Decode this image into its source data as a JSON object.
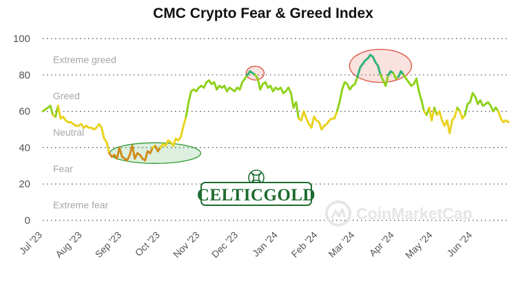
{
  "chart_data": {
    "type": "line",
    "title": "CMC Crypto Fear & Greed Index",
    "xlabel": "",
    "ylabel": "",
    "ylim": [
      0,
      100
    ],
    "yticks": [
      0,
      20,
      40,
      60,
      80,
      100
    ],
    "xlim": [
      "2023-07-01",
      "2024-06-30"
    ],
    "xticks": [
      {
        "date": "2023-07-01",
        "label": "Jul '23"
      },
      {
        "date": "2023-08-01",
        "label": "Aug '23"
      },
      {
        "date": "2023-09-01",
        "label": "Sep '23"
      },
      {
        "date": "2023-10-01",
        "label": "Oct '23"
      },
      {
        "date": "2023-11-01",
        "label": "Nov '23"
      },
      {
        "date": "2023-12-01",
        "label": "Dec '23"
      },
      {
        "date": "2024-01-01",
        "label": "Jan '24"
      },
      {
        "date": "2024-02-01",
        "label": "Feb '24"
      },
      {
        "date": "2024-03-01",
        "label": "Mar '24"
      },
      {
        "date": "2024-04-01",
        "label": "Apr '24"
      },
      {
        "date": "2024-05-01",
        "label": "May '24"
      },
      {
        "date": "2024-06-01",
        "label": "Jun '24"
      }
    ],
    "grid": true,
    "zones": [
      {
        "label": "Extreme greed",
        "y": 88.5
      },
      {
        "label": "Greed",
        "y": 68.5
      },
      {
        "label": "Neutral",
        "y": 48.5
      },
      {
        "label": "Fear",
        "y": 28.5
      },
      {
        "label": "Extreme fear",
        "y": 8.5
      }
    ],
    "color_bands": [
      {
        "min": 0,
        "max": 40,
        "color": "#cf8b1a"
      },
      {
        "min": 40,
        "max": 60,
        "color": "#e9d21e"
      },
      {
        "min": 60,
        "max": 80,
        "color": "#8fd11b"
      },
      {
        "min": 80,
        "max": 100,
        "color": "#2fb277"
      }
    ],
    "x": [
      "2023-07-01",
      "2023-07-03",
      "2023-07-05",
      "2023-07-07",
      "2023-07-09",
      "2023-07-11",
      "2023-07-13",
      "2023-07-15",
      "2023-07-17",
      "2023-07-19",
      "2023-07-21",
      "2023-07-23",
      "2023-07-25",
      "2023-07-27",
      "2023-07-29",
      "2023-07-31",
      "2023-08-02",
      "2023-08-04",
      "2023-08-06",
      "2023-08-08",
      "2023-08-10",
      "2023-08-12",
      "2023-08-14",
      "2023-08-16",
      "2023-08-18",
      "2023-08-20",
      "2023-08-22",
      "2023-08-24",
      "2023-08-26",
      "2023-08-28",
      "2023-08-30",
      "2023-09-01",
      "2023-09-03",
      "2023-09-05",
      "2023-09-07",
      "2023-09-09",
      "2023-09-11",
      "2023-09-13",
      "2023-09-15",
      "2023-09-17",
      "2023-09-19",
      "2023-09-21",
      "2023-09-23",
      "2023-09-25",
      "2023-09-27",
      "2023-09-29",
      "2023-10-01",
      "2023-10-03",
      "2023-10-05",
      "2023-10-07",
      "2023-10-09",
      "2023-10-11",
      "2023-10-13",
      "2023-10-15",
      "2023-10-17",
      "2023-10-19",
      "2023-10-21",
      "2023-10-23",
      "2023-10-25",
      "2023-10-27",
      "2023-10-29",
      "2023-10-31",
      "2023-11-02",
      "2023-11-04",
      "2023-11-06",
      "2023-11-08",
      "2023-11-10",
      "2023-11-12",
      "2023-11-14",
      "2023-11-16",
      "2023-11-18",
      "2023-11-20",
      "2023-11-22",
      "2023-11-24",
      "2023-11-26",
      "2023-11-28",
      "2023-11-30",
      "2023-12-02",
      "2023-12-04",
      "2023-12-06",
      "2023-12-08",
      "2023-12-10",
      "2023-12-12",
      "2023-12-14",
      "2023-12-16",
      "2023-12-18",
      "2023-12-20",
      "2023-12-22",
      "2023-12-24",
      "2023-12-26",
      "2023-12-28",
      "2023-12-30",
      "2024-01-01",
      "2024-01-03",
      "2024-01-05",
      "2024-01-07",
      "2024-01-09",
      "2024-01-11",
      "2024-01-13",
      "2024-01-15",
      "2024-01-17",
      "2024-01-19",
      "2024-01-21",
      "2024-01-23",
      "2024-01-25",
      "2024-01-27",
      "2024-01-29",
      "2024-01-31",
      "2024-02-02",
      "2024-02-04",
      "2024-02-06",
      "2024-02-08",
      "2024-02-10",
      "2024-02-12",
      "2024-02-14",
      "2024-02-16",
      "2024-02-18",
      "2024-02-20",
      "2024-02-22",
      "2024-02-24",
      "2024-02-26",
      "2024-02-28",
      "2024-03-01",
      "2024-03-03",
      "2024-03-05",
      "2024-03-07",
      "2024-03-09",
      "2024-03-11",
      "2024-03-13",
      "2024-03-15",
      "2024-03-17",
      "2024-03-19",
      "2024-03-21",
      "2024-03-23",
      "2024-03-25",
      "2024-03-27",
      "2024-03-29",
      "2024-03-31",
      "2024-04-02",
      "2024-04-04",
      "2024-04-06",
      "2024-04-08",
      "2024-04-10",
      "2024-04-12",
      "2024-04-14",
      "2024-04-16",
      "2024-04-18",
      "2024-04-20",
      "2024-04-22",
      "2024-04-24",
      "2024-04-26",
      "2024-04-28",
      "2024-04-30",
      "2024-05-02",
      "2024-05-04",
      "2024-05-06",
      "2024-05-08",
      "2024-05-10",
      "2024-05-12",
      "2024-05-14",
      "2024-05-16",
      "2024-05-18",
      "2024-05-20",
      "2024-05-22",
      "2024-05-24",
      "2024-05-26",
      "2024-05-28",
      "2024-05-30",
      "2024-06-01",
      "2024-06-03",
      "2024-06-05",
      "2024-06-07",
      "2024-06-09",
      "2024-06-11",
      "2024-06-13",
      "2024-06-15",
      "2024-06-17",
      "2024-06-19",
      "2024-06-21",
      "2024-06-23",
      "2024-06-25",
      "2024-06-27",
      "2024-06-29"
    ],
    "series": [
      {
        "values": [
          60,
          61,
          62,
          63,
          58,
          57,
          63,
          56,
          57,
          55,
          54,
          54,
          53,
          52,
          52,
          53,
          51,
          52,
          51,
          51,
          50,
          51,
          53,
          51,
          45,
          43,
          37,
          35,
          36,
          34,
          40,
          35,
          34,
          33,
          36,
          41,
          34,
          37,
          36,
          34,
          33,
          38,
          37,
          40,
          41,
          38,
          40,
          42,
          41,
          44,
          43,
          41,
          45,
          44,
          46,
          52,
          57,
          65,
          71,
          72,
          71,
          73,
          74,
          73,
          76,
          77,
          75,
          76,
          72,
          74,
          73,
          74,
          71,
          73,
          72,
          71,
          73,
          72,
          76,
          78,
          80,
          82,
          81,
          80,
          78,
          72,
          75,
          76,
          73,
          74,
          71,
          73,
          72,
          73,
          70,
          71,
          73,
          70,
          62,
          65,
          56,
          55,
          60,
          56,
          53,
          51,
          57,
          55,
          54,
          50,
          52,
          53,
          55,
          56,
          56,
          60,
          65,
          72,
          76,
          75,
          72,
          74,
          75,
          79,
          84,
          86,
          88,
          89,
          91,
          90,
          87,
          85,
          80,
          77,
          74,
          80,
          82,
          81,
          78,
          79,
          82,
          80,
          78,
          76,
          74,
          75,
          78,
          71,
          66,
          60,
          58,
          62,
          55,
          62,
          58,
          60,
          55,
          52,
          55,
          48,
          55,
          57,
          62,
          60,
          56,
          58,
          64,
          65,
          70,
          68,
          64,
          66,
          63,
          64,
          65,
          63,
          60,
          62,
          60,
          56,
          54,
          55,
          54
        ]
      }
    ],
    "annotations": [
      {
        "shape": "ellipse",
        "center": [
          "2023-09-27",
          37
        ],
        "color": "#2e9b33"
      },
      {
        "shape": "ellipse",
        "center": [
          "2023-12-14",
          81
        ],
        "color": "#d94a3a"
      },
      {
        "shape": "ellipse",
        "center": [
          "2024-03-21",
          85
        ],
        "color": "#d94a3a"
      }
    ]
  },
  "branding": {
    "logo_text": "CELTICGOLD",
    "watermark": "CoinMarketCap",
    "logo_color": "#1e6b30"
  }
}
